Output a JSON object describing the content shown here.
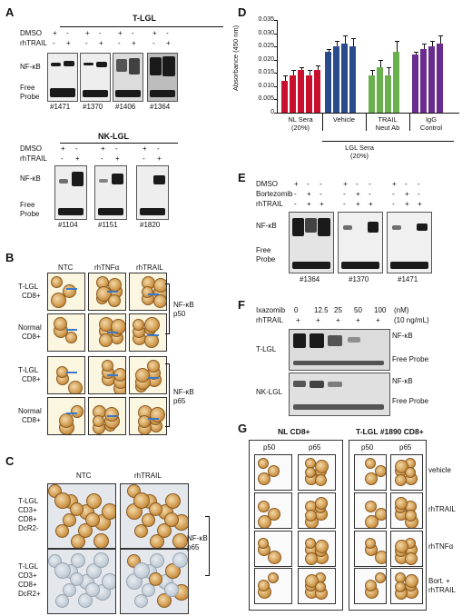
{
  "panels": {
    "A": "A",
    "B": "B",
    "C": "C",
    "D": "D",
    "E": "E",
    "F": "F",
    "G": "G"
  },
  "A": {
    "tlgl_title": "T-LGL",
    "nklgl_title": "NK-LGL",
    "row_dmso": "DMSO",
    "row_rhtrail": "rhTRAIL",
    "nfkb": "NF-κB",
    "free": "Free",
    "probe": "Probe",
    "tlgl_patients": [
      "#1471",
      "#1370",
      "#1406",
      "#1364"
    ],
    "nklgl_patients": [
      "#1104",
      "#1151",
      "#1820"
    ],
    "dmso_signs": [
      "+",
      "-"
    ],
    "trail_signs": [
      "-",
      "+"
    ]
  },
  "B": {
    "cols": [
      "NTC",
      "rhTNFα",
      "rhTRAIL"
    ],
    "rows": [
      {
        "l1": "T-LGL",
        "l2": "CD8+"
      },
      {
        "l1": "Normal",
        "l2": "CD8+"
      },
      {
        "l1": "T-LGL",
        "l2": "CD8+"
      },
      {
        "l1": "Normal",
        "l2": "CD8+"
      }
    ],
    "bracket1": [
      "NF-κB",
      "p50"
    ],
    "bracket2": [
      "NF-κB",
      "p65"
    ]
  },
  "C": {
    "cols": [
      "NTC",
      "rhTRAIL"
    ],
    "row1": [
      "T-LGL",
      "CD3+",
      "CD8+",
      "DcR2-"
    ],
    "row2": [
      "T-LGL",
      "CD3+",
      "CD8+",
      "DcR2+"
    ],
    "bracket": [
      "NF-κB",
      "p65"
    ]
  },
  "D": {
    "ylabel": "Absorbance (450 nm)",
    "group_labels": [
      [
        "NL Sera",
        "(20%)"
      ],
      [
        "Vehicle"
      ],
      [
        "TRAIL",
        "Neut Ab"
      ],
      [
        "IgG",
        "Control"
      ]
    ],
    "sublabel": [
      "LGL Sera",
      "(20%)"
    ],
    "ticks": [
      "0",
      "0.005",
      "0.010",
      "0.015",
      "0.020",
      "0.025",
      "0.030",
      "0.035"
    ],
    "colors": {
      "nl": "#c8102e",
      "vehicle": "#2b4c8c",
      "trail": "#6ab04c",
      "igg": "#6a2c8e"
    }
  },
  "chart_data": {
    "type": "bar",
    "ylabel": "Absorbance (450 nm)",
    "ylim": [
      0,
      0.035
    ],
    "series": [
      {
        "values": [
          0.012,
          0.014,
          0.016,
          0.014,
          0.016
        ]
      },
      {
        "values": [
          0.023,
          0.025,
          0.026,
          0.025
        ]
      },
      {
        "values": [
          0.014,
          0.017,
          0.014,
          0.023
        ]
      },
      {
        "values": [
          0.022,
          0.024,
          0.025,
          0.026
        ]
      }
    ],
    "errors": [
      [
        0.002,
        0.002,
        0.001,
        0.002,
        0.002
      ],
      [
        0.001,
        0.002,
        0.003,
        0.003
      ],
      [
        0.002,
        0.003,
        0.003,
        0.004
      ],
      [
        0.001,
        0.002,
        0.002,
        0.003
      ]
    ]
  },
  "E": {
    "rows": [
      "DMSO",
      "Bortezomib",
      "rhTRAIL"
    ],
    "signs": [
      [
        "+",
        "-",
        "-"
      ],
      [
        "-",
        "+",
        "-"
      ],
      [
        "-",
        "+",
        "+"
      ]
    ],
    "nfkb": "NF-κB",
    "free": "Free",
    "probe": "Probe",
    "patients": [
      "#1364",
      "#1370",
      "#1471"
    ]
  },
  "F": {
    "ixazomib": "Ixazomib",
    "doses": [
      "0",
      "12.5",
      "25",
      "50",
      "100"
    ],
    "dose_unit": "(nM)",
    "rhtrail": "rhTRAIL",
    "trail_signs": [
      "+",
      "+",
      "+",
      "+",
      "+"
    ],
    "trail_unit": "(10 ng/mL)",
    "tlgl": "T-LGL",
    "nklgl": "NK-LGL",
    "nfkb": "NF-κB",
    "free_probe": "Free Probe"
  },
  "G": {
    "left_title": "NL CD8+",
    "right_title": "T-LGL #1890 CD8+",
    "cols": [
      "p50",
      "p65"
    ],
    "rows": [
      "vehicle",
      "rhTRAIL",
      "rhTNFα",
      "Bort. +",
      "rhTRAIL"
    ]
  }
}
